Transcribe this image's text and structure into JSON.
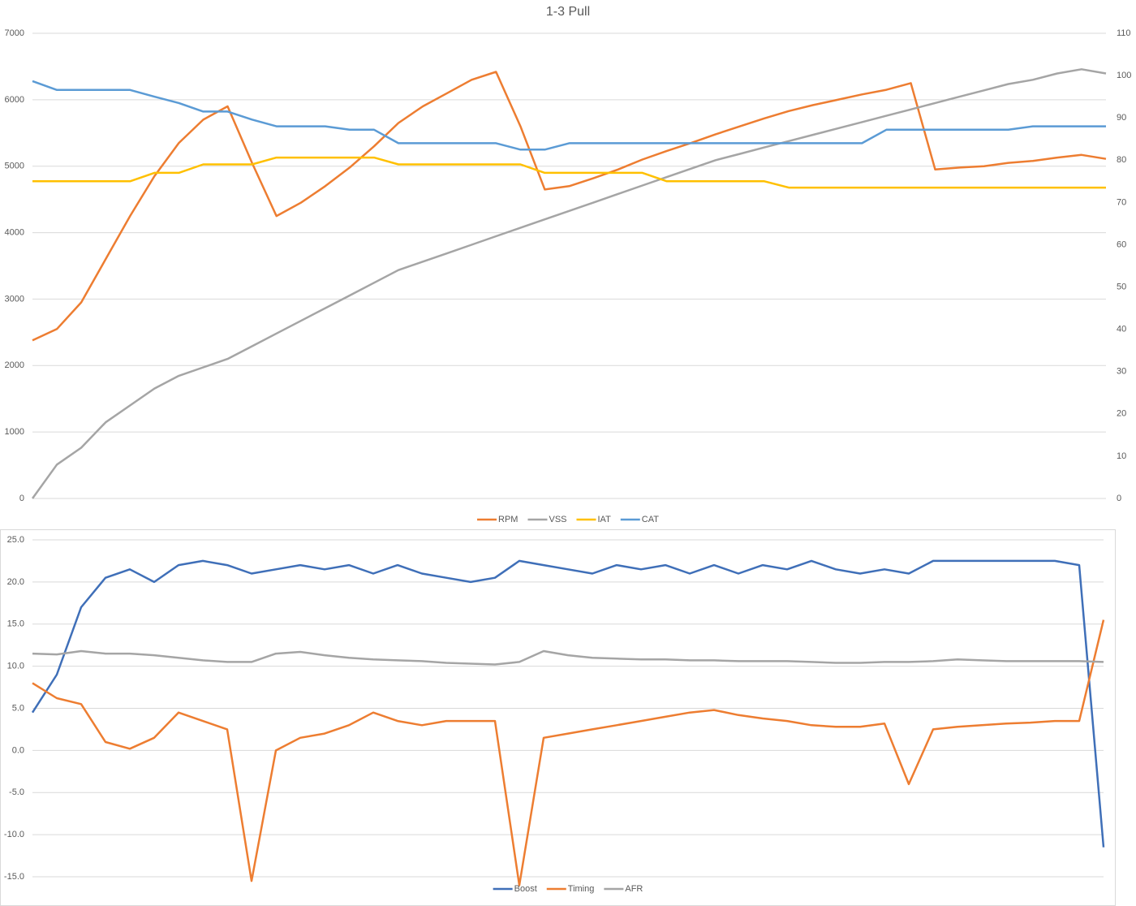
{
  "chart_data": [
    {
      "type": "line",
      "title": "1-3 Pull",
      "ylim": [
        0,
        7000
      ],
      "yticks": [
        0,
        1000,
        2000,
        3000,
        4000,
        5000,
        6000,
        7000
      ],
      "y2lim": [
        0,
        110
      ],
      "y2ticks": [
        0,
        10,
        20,
        30,
        40,
        50,
        60,
        70,
        80,
        90,
        100,
        110
      ],
      "grid": true,
      "legend": "bottom",
      "series": [
        {
          "name": "RPM",
          "color": "#ed7d31",
          "values": [
            2380,
            2550,
            2950,
            3600,
            4250,
            4850,
            5350,
            5700,
            5900,
            5050,
            4250,
            4450,
            4700,
            4980,
            5300,
            5650,
            5900,
            6100,
            6300,
            6420,
            5600,
            4650,
            4700,
            4820,
            4950,
            5100,
            5230,
            5350,
            5480,
            5600,
            5720,
            5830,
            5920,
            6000,
            6080,
            6150,
            6250,
            4950,
            4980,
            5000,
            5050,
            5080,
            5130,
            5170,
            5110
          ]
        },
        {
          "name": "VSS",
          "color": "#a5a5a5",
          "axis": "y2",
          "values": [
            0,
            8,
            12,
            18,
            22,
            26,
            29,
            31,
            33,
            36,
            39,
            42,
            45,
            48,
            51,
            54,
            56,
            58,
            60,
            62,
            64,
            66,
            68,
            70,
            72,
            74,
            76,
            78,
            80,
            81.5,
            83,
            84.5,
            86,
            87.5,
            89,
            90.5,
            92,
            93.5,
            95,
            96.5,
            98,
            99,
            100.5,
            101.5,
            100.5
          ]
        },
        {
          "name": "IAT",
          "color": "#ffc000",
          "axis": "y2",
          "values": [
            75,
            75,
            75,
            75,
            75,
            77,
            77,
            79,
            79,
            79,
            80.6,
            80.6,
            80.6,
            80.6,
            80.6,
            79,
            79,
            79,
            79,
            79,
            79,
            77,
            77,
            77,
            77,
            77,
            75,
            75,
            75,
            75,
            75,
            73.5,
            73.5,
            73.5,
            73.5,
            73.5,
            73.5,
            73.5,
            73.5,
            73.5,
            73.5,
            73.5,
            73.5,
            73.5,
            73.5
          ]
        },
        {
          "name": "CAT",
          "color": "#5b9bd5",
          "axis": "y2",
          "values": [
            98.7,
            96.6,
            96.6,
            96.6,
            96.6,
            95,
            93.5,
            91.5,
            91.5,
            89.6,
            88,
            88,
            88,
            87.2,
            87.2,
            84,
            84,
            84,
            84,
            84,
            82.5,
            82.5,
            84,
            84,
            84,
            84,
            84,
            84,
            84,
            84,
            84,
            84,
            84,
            84,
            84,
            87.2,
            87.2,
            87.2,
            87.2,
            87.2,
            87.2,
            88,
            88,
            88,
            88
          ]
        }
      ]
    },
    {
      "type": "line",
      "ylim": [
        -15,
        25
      ],
      "yticks": [
        {
          "value": -15,
          "label": "-15.0"
        },
        {
          "value": -10,
          "label": "-10.0"
        },
        {
          "value": -5,
          "label": "-5.0"
        },
        {
          "value": 0,
          "label": "0.0"
        },
        {
          "value": 5,
          "label": "5.0"
        },
        {
          "value": 10,
          "label": "10.0"
        },
        {
          "value": 15,
          "label": "15.0"
        },
        {
          "value": 20,
          "label": "20.0"
        },
        {
          "value": 25,
          "label": "25.0"
        }
      ],
      "grid": true,
      "legend": "bottom",
      "series": [
        {
          "name": "Boost",
          "color": "#3f6fb8",
          "values": [
            4.5,
            9,
            17,
            20.5,
            21.5,
            20,
            22,
            22.5,
            22,
            21,
            21.5,
            22,
            21.5,
            22,
            21,
            22,
            21,
            20.5,
            20,
            20.5,
            22.5,
            22,
            21.5,
            21,
            22,
            21.5,
            22,
            21,
            22,
            21,
            22,
            21.5,
            22.5,
            21.5,
            21,
            21.5,
            21,
            22.5,
            22.5,
            22.5,
            22.5,
            22.5,
            22.5,
            22,
            -11.5
          ]
        },
        {
          "name": "Timing",
          "color": "#ed7d31",
          "values": [
            8,
            6.2,
            5.5,
            1,
            0.2,
            1.5,
            4.5,
            3.5,
            2.5,
            -15.5,
            0,
            1.5,
            2,
            3,
            4.5,
            3.5,
            3,
            3.5,
            3.5,
            3.5,
            -16,
            1.5,
            2,
            2.5,
            3,
            3.5,
            4,
            4.5,
            4.8,
            4.2,
            3.8,
            3.5,
            3,
            2.8,
            2.8,
            3.2,
            -4,
            2.5,
            2.8,
            3,
            3.2,
            3.3,
            3.5,
            3.5,
            15.5
          ]
        },
        {
          "name": "AFR",
          "color": "#a5a5a5",
          "values": [
            11.5,
            11.4,
            11.8,
            11.5,
            11.5,
            11.3,
            11,
            10.7,
            10.5,
            10.5,
            11.5,
            11.7,
            11.3,
            11,
            10.8,
            10.7,
            10.6,
            10.4,
            10.3,
            10.2,
            10.5,
            11.8,
            11.3,
            11,
            10.9,
            10.8,
            10.8,
            10.7,
            10.7,
            10.6,
            10.6,
            10.6,
            10.5,
            10.4,
            10.4,
            10.5,
            10.5,
            10.6,
            10.8,
            10.7,
            10.6,
            10.6,
            10.6,
            10.6,
            10.5
          ]
        }
      ]
    }
  ]
}
